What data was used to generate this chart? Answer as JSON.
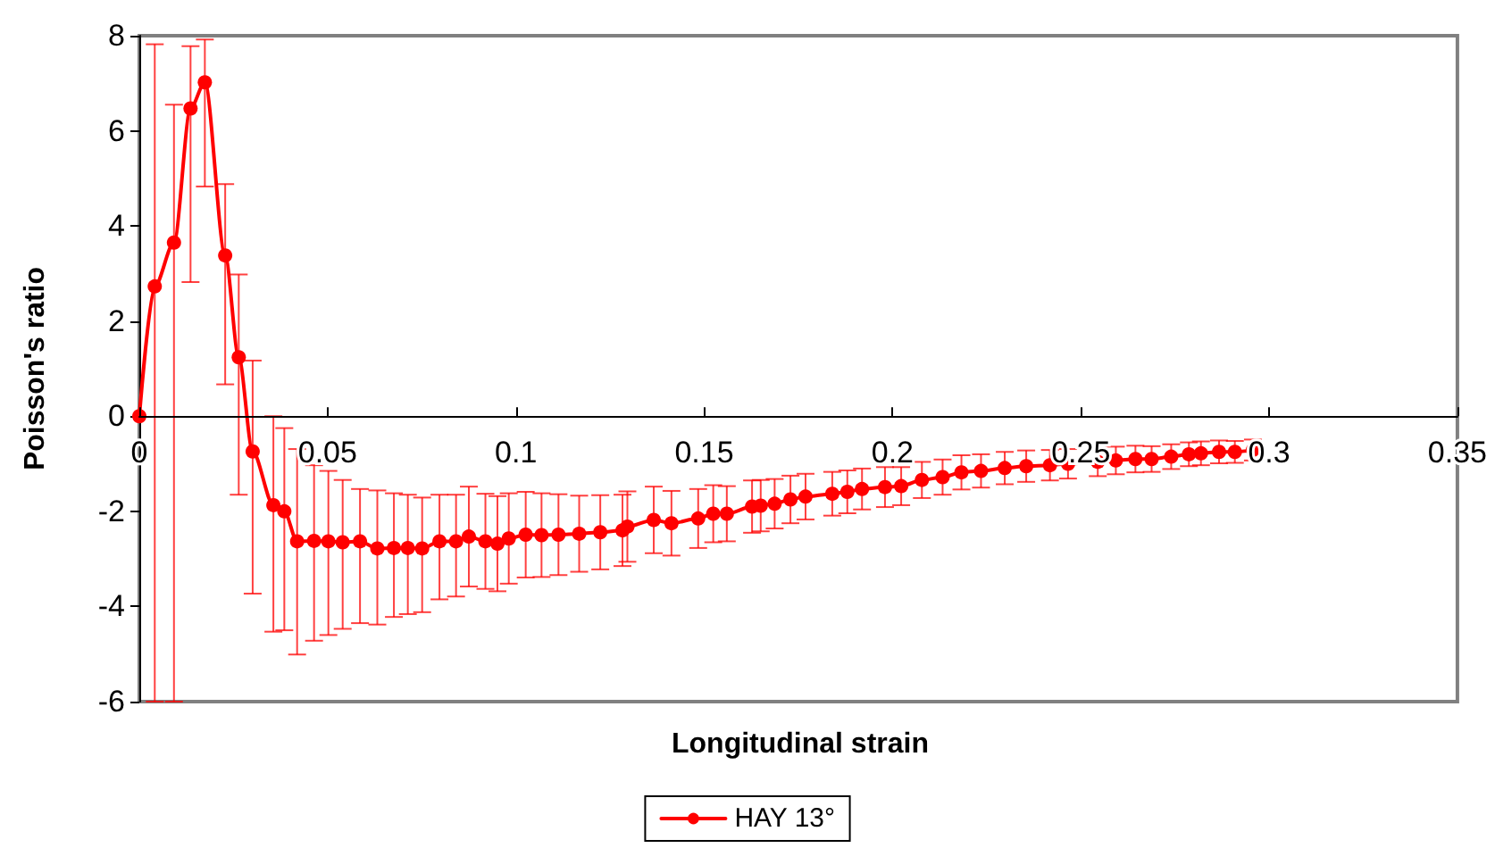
{
  "chart_data": {
    "type": "line",
    "xlabel": "Longitudinal strain",
    "ylabel": "Poisson's ratio",
    "xlim": [
      0,
      0.35
    ],
    "ylim": [
      -6,
      8
    ],
    "xticks": [
      0,
      0.05,
      0.1,
      0.15,
      0.2,
      0.25,
      0.3,
      0.35
    ],
    "yticks": [
      -6,
      -4,
      -2,
      0,
      2,
      4,
      6,
      8
    ],
    "grid": false,
    "legend": "bottom",
    "marker": "circle",
    "line_style": "solid",
    "series": [
      {
        "name": "HAY 13°",
        "color": "#ff0000",
        "x": [
          0,
          0.0041,
          0.0092,
          0.0136,
          0.0174,
          0.0228,
          0.0264,
          0.0301,
          0.0356,
          0.0385,
          0.0419,
          0.0464,
          0.0502,
          0.054,
          0.0586,
          0.0632,
          0.0676,
          0.0713,
          0.0751,
          0.0797,
          0.0841,
          0.0875,
          0.0919,
          0.0951,
          0.0981,
          0.1026,
          0.1068,
          0.1113,
          0.1168,
          0.1224,
          0.1283,
          0.1296,
          0.1366,
          0.1413,
          0.1484,
          0.1524,
          0.156,
          0.1627,
          0.165,
          0.1687,
          0.1729,
          0.1769,
          0.184,
          0.188,
          0.1919,
          0.198,
          0.2023,
          0.2078,
          0.2133,
          0.2183,
          0.2235,
          0.2298,
          0.2355,
          0.2418,
          0.2466,
          0.2545,
          0.2593,
          0.2645,
          0.2688,
          0.274,
          0.2787,
          0.2819,
          0.2867,
          0.2909,
          0.2957
        ],
        "values": [
          0,
          2.73,
          3.65,
          6.47,
          7.02,
          3.38,
          1.24,
          -0.74,
          -1.87,
          -2.0,
          -2.63,
          -2.62,
          -2.63,
          -2.65,
          -2.63,
          -2.78,
          -2.77,
          -2.77,
          -2.78,
          -2.63,
          -2.63,
          -2.53,
          -2.63,
          -2.68,
          -2.57,
          -2.49,
          -2.5,
          -2.49,
          -2.47,
          -2.44,
          -2.4,
          -2.32,
          -2.18,
          -2.25,
          -2.15,
          -2.05,
          -2.05,
          -1.9,
          -1.88,
          -1.84,
          -1.75,
          -1.69,
          -1.63,
          -1.59,
          -1.53,
          -1.49,
          -1.47,
          -1.34,
          -1.28,
          -1.18,
          -1.15,
          -1.09,
          -1.05,
          -1.03,
          -1.0,
          -0.96,
          -0.93,
          -0.9,
          -0.9,
          -0.85,
          -0.8,
          -0.78,
          -0.75,
          -0.75,
          -0.71
        ],
        "errors": [
          null,
          [
            -6,
            7.82
          ],
          [
            -6,
            6.55
          ],
          [
            2.82,
            7.78
          ],
          [
            4.83,
            7.92
          ],
          [
            0.67,
            4.88
          ],
          [
            -1.65,
            2.98
          ],
          [
            -3.73,
            1.17
          ],
          [
            -4.53,
            0
          ],
          [
            -4.5,
            -0.25
          ],
          [
            -5.01,
            -0.69
          ],
          [
            -4.72,
            -1.03
          ],
          [
            -4.6,
            -1.15
          ],
          [
            -4.47,
            -1.34
          ],
          [
            -4.35,
            -1.53
          ],
          [
            -4.38,
            -1.56
          ],
          [
            -4.22,
            -1.62
          ],
          [
            -4.16,
            -1.65
          ],
          [
            -4.12,
            -1.71
          ],
          [
            -3.85,
            -1.65
          ],
          [
            -3.79,
            -1.65
          ],
          1.05,
          1.0,
          1.0,
          0.95,
          0.9,
          0.88,
          0.85,
          0.8,
          0.78,
          0.75,
          0.74,
          0.7,
          0.68,
          0.62,
          0.6,
          0.58,
          0.55,
          0.54,
          0.52,
          0.5,
          0.48,
          0.46,
          0.45,
          0.43,
          0.42,
          0.4,
          0.38,
          0.37,
          0.36,
          0.35,
          0.34,
          0.33,
          0.32,
          0.31,
          0.3,
          0.29,
          0.28,
          0.27,
          0.26,
          0.25,
          0.25,
          0.24,
          0.23,
          0.22
        ]
      }
    ]
  }
}
